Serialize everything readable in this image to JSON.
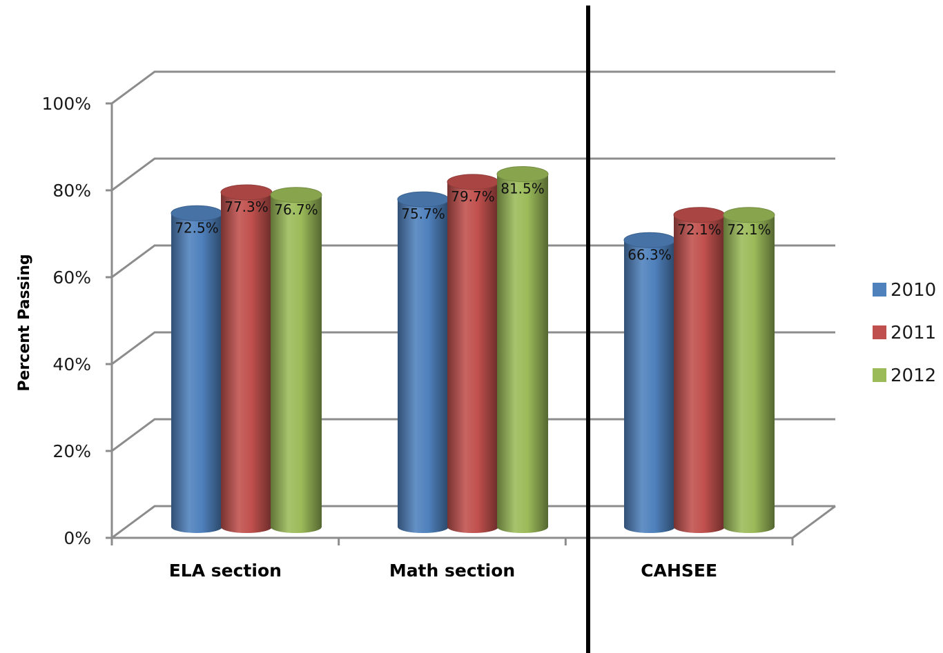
{
  "chart_data": {
    "type": "bar",
    "title": "",
    "xlabel": "",
    "ylabel": "Percent Passing",
    "categories": [
      "ELA section",
      "Math section",
      "CAHSEE"
    ],
    "series": [
      {
        "name": "2010",
        "values": [
          72.5,
          75.7,
          66.3
        ],
        "labels": [
          "72.5%",
          "75.7%",
          "66.3%"
        ],
        "color": "#4f81bd"
      },
      {
        "name": "2011",
        "values": [
          77.3,
          79.7,
          72.1
        ],
        "labels": [
          "77.3%",
          "79.7%",
          "72.1%"
        ],
        "color": "#c0504d"
      },
      {
        "name": "2012",
        "values": [
          76.7,
          81.5,
          72.1
        ],
        "labels": [
          "76.7%",
          "81.5%",
          "72.1%"
        ],
        "color": "#9bbb59"
      }
    ],
    "ylim": [
      0,
      100
    ],
    "yticks": [
      {
        "value": 0,
        "label": "0%"
      },
      {
        "value": 20,
        "label": "20%"
      },
      {
        "value": 40,
        "label": "40%"
      },
      {
        "value": 60,
        "label": "60%"
      },
      {
        "value": 80,
        "label": "80%"
      },
      {
        "value": 100,
        "label": "100%"
      }
    ],
    "grid": true,
    "style": "3d-cylinder",
    "legend_position": "right",
    "separator_line": "between Math section and CAHSEE"
  }
}
